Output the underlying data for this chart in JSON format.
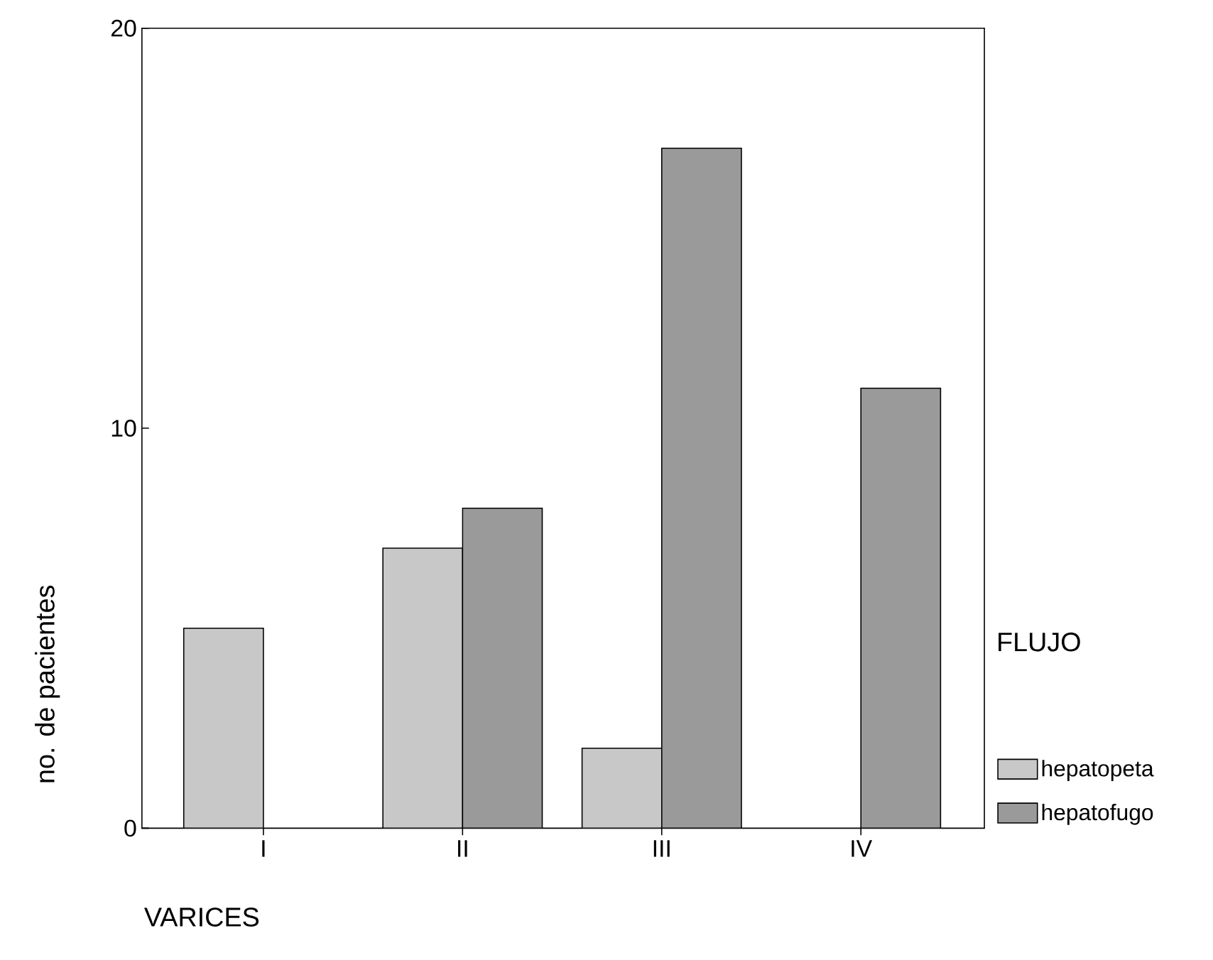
{
  "chart_data": {
    "type": "bar",
    "xlabel": "VARICES",
    "ylabel": "no. de pacientes",
    "legend_title": "FLUJO",
    "categories": [
      "I",
      "II",
      "III",
      "IV"
    ],
    "series": [
      {
        "name": "hepatopeta",
        "color": "#c8c8c8",
        "values": [
          5,
          7,
          2,
          null
        ]
      },
      {
        "name": "hepatofugo",
        "color": "#9a9a9a",
        "values": [
          null,
          8,
          17,
          11
        ]
      }
    ],
    "ylim": [
      0,
      20
    ],
    "yticks": [
      0,
      10,
      20
    ],
    "legend": "right",
    "grid": false
  }
}
